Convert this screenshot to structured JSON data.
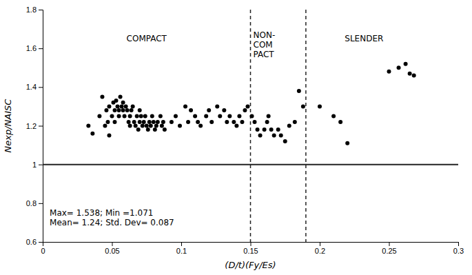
{
  "chart_data": {
    "type": "scatter",
    "x_label": "(D/t)(Fy/Es)",
    "y_label": "Nexp/NAISC",
    "xlim": [
      0,
      0.3
    ],
    "ylim": [
      0.6,
      1.8
    ],
    "xticks": [
      0,
      0.05,
      0.1,
      0.15,
      0.2,
      0.25,
      0.3
    ],
    "yticks": [
      0.6,
      0.8,
      1,
      1.2,
      1.4,
      1.6,
      1.8
    ],
    "grid": false,
    "color": "black",
    "hlines": [
      1.0
    ],
    "vlines": [
      0.15,
      0.19
    ],
    "annotations": [
      {
        "text": "COMPACT",
        "x": 0.075,
        "y": 1.65
      },
      {
        "text": "NON-\nCOM\nPACT",
        "x": 0.152,
        "y": 1.62
      },
      {
        "text": "SLENDER",
        "x": 0.232,
        "y": 1.65
      },
      {
        "text": "Max= 1.538; Min =1.071\nMean= 1.24; Std. Dev= 0.087",
        "x": 0.005,
        "y": 0.725
      }
    ],
    "x": [
      0.033,
      0.036,
      0.041,
      0.043,
      0.045,
      0.046,
      0.047,
      0.048,
      0.048,
      0.05,
      0.051,
      0.052,
      0.052,
      0.053,
      0.054,
      0.055,
      0.055,
      0.056,
      0.057,
      0.058,
      0.058,
      0.059,
      0.06,
      0.061,
      0.062,
      0.063,
      0.063,
      0.064,
      0.065,
      0.066,
      0.067,
      0.068,
      0.069,
      0.07,
      0.07,
      0.071,
      0.072,
      0.073,
      0.074,
      0.075,
      0.076,
      0.077,
      0.078,
      0.079,
      0.08,
      0.081,
      0.082,
      0.083,
      0.085,
      0.086,
      0.087,
      0.088,
      0.093,
      0.096,
      0.099,
      0.103,
      0.105,
      0.107,
      0.11,
      0.112,
      0.114,
      0.118,
      0.12,
      0.122,
      0.126,
      0.128,
      0.131,
      0.133,
      0.135,
      0.138,
      0.14,
      0.142,
      0.144,
      0.146,
      0.148,
      0.151,
      0.153,
      0.155,
      0.157,
      0.16,
      0.162,
      0.163,
      0.165,
      0.167,
      0.17,
      0.172,
      0.175,
      0.178,
      0.182,
      0.185,
      0.188,
      0.2,
      0.21,
      0.215,
      0.22,
      0.25,
      0.257,
      0.262,
      0.265,
      0.268
    ],
    "values": [
      1.2,
      1.16,
      1.25,
      1.35,
      1.2,
      1.28,
      1.22,
      1.3,
      1.15,
      1.25,
      1.32,
      1.28,
      1.22,
      1.33,
      1.3,
      1.25,
      1.28,
      1.35,
      1.3,
      1.28,
      1.32,
      1.25,
      1.3,
      1.28,
      1.22,
      1.2,
      1.25,
      1.28,
      1.3,
      1.22,
      1.2,
      1.25,
      1.18,
      1.22,
      1.28,
      1.25,
      1.2,
      1.22,
      1.25,
      1.2,
      1.18,
      1.22,
      1.2,
      1.25,
      1.22,
      1.18,
      1.2,
      1.22,
      1.25,
      1.2,
      1.22,
      1.18,
      1.22,
      1.25,
      1.2,
      1.3,
      1.22,
      1.28,
      1.25,
      1.22,
      1.2,
      1.25,
      1.28,
      1.22,
      1.3,
      1.25,
      1.28,
      1.22,
      1.25,
      1.22,
      1.2,
      1.25,
      1.22,
      1.28,
      1.3,
      1.25,
      1.22,
      1.18,
      1.15,
      1.18,
      1.22,
      1.25,
      1.18,
      1.15,
      1.18,
      1.15,
      1.12,
      1.2,
      1.22,
      1.38,
      1.3,
      1.3,
      1.25,
      1.22,
      1.11,
      1.48,
      1.5,
      1.52,
      1.47,
      1.46
    ]
  }
}
